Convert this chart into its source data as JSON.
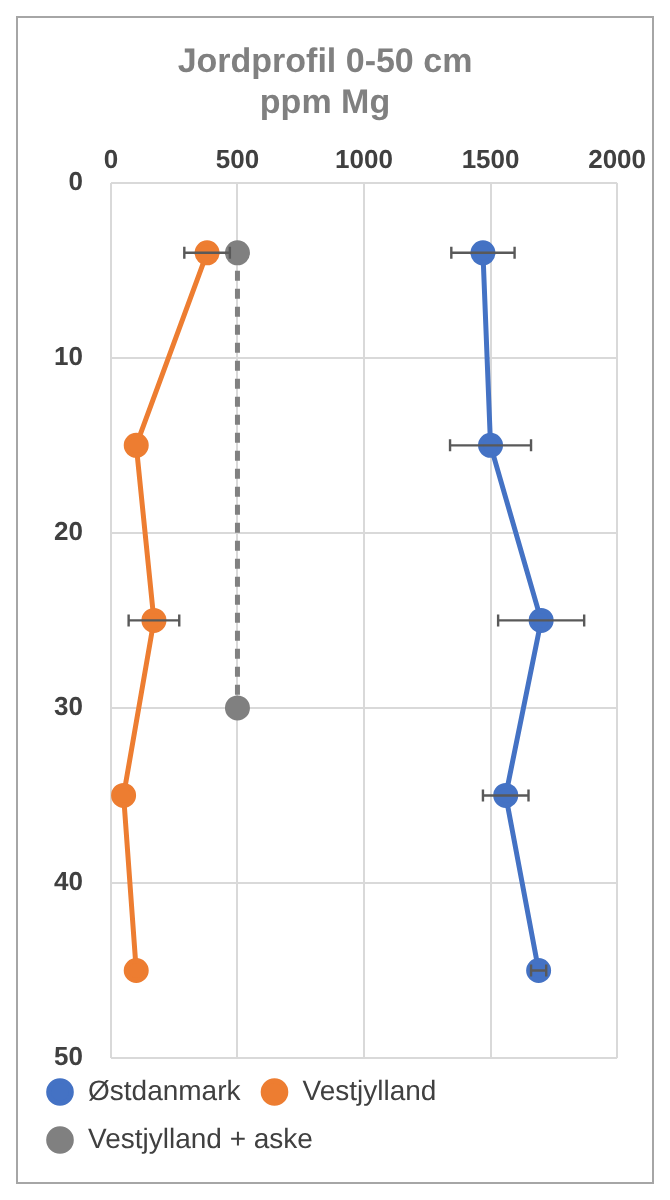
{
  "chart_data": {
    "type": "line",
    "title": "Jordprofil 0-50 cm\nppm Mg",
    "xlim": [
      0,
      2000
    ],
    "xticks": [
      0,
      500,
      1000,
      1500,
      2000
    ],
    "ylim": [
      50,
      0
    ],
    "yticks": [
      0,
      10,
      20,
      30,
      40,
      50
    ],
    "grid": true,
    "legend": "bottom",
    "marker": "circle",
    "series": [
      {
        "name": "Østdanmark",
        "color": "#4472c4",
        "x": [
          1470,
          1500,
          1700,
          1560,
          1690
        ],
        "values": [
          4,
          15,
          25,
          35,
          45
        ],
        "xerrors": [
          125,
          160,
          170,
          90,
          30
        ],
        "line_style": "solid"
      },
      {
        "name": "Vestjylland",
        "color": "#ed7d31",
        "x": [
          380,
          100,
          170,
          50,
          100
        ],
        "values": [
          4,
          15,
          25,
          35,
          45
        ],
        "xerrors": [
          90,
          null,
          100,
          null,
          null
        ],
        "line_style": "solid"
      },
      {
        "name": "Vestjylland + aske",
        "color": "#808080",
        "x": [
          500,
          500
        ],
        "values": [
          4,
          30
        ],
        "line_style": "dashed"
      }
    ]
  }
}
